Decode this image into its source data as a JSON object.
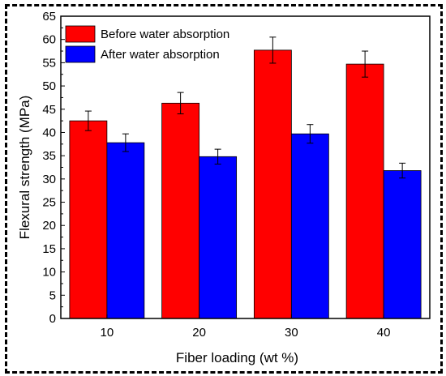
{
  "chart_data": {
    "type": "bar",
    "categories": [
      "10",
      "20",
      "30",
      "40"
    ],
    "xlabel": "Fiber loading (wt %)",
    "ylabel": "Flexural strength (MPa)",
    "ylim": [
      0,
      65
    ],
    "yticks": [
      "0",
      "5",
      "10",
      "15",
      "20",
      "25",
      "30",
      "35",
      "40",
      "45",
      "50",
      "55",
      "60",
      "65"
    ],
    "series": [
      {
        "name": "Before water absorption",
        "color": "#ff0000",
        "values": [
          42.5,
          46.3,
          57.7,
          54.7
        ],
        "errors": [
          2.1,
          2.3,
          2.8,
          2.8
        ]
      },
      {
        "name": "After water absorption",
        "color": "#0000ff",
        "values": [
          37.8,
          34.8,
          39.7,
          31.8
        ],
        "errors": [
          1.9,
          1.6,
          2.0,
          1.6
        ]
      }
    ],
    "legend": "top-left",
    "grid": false
  }
}
